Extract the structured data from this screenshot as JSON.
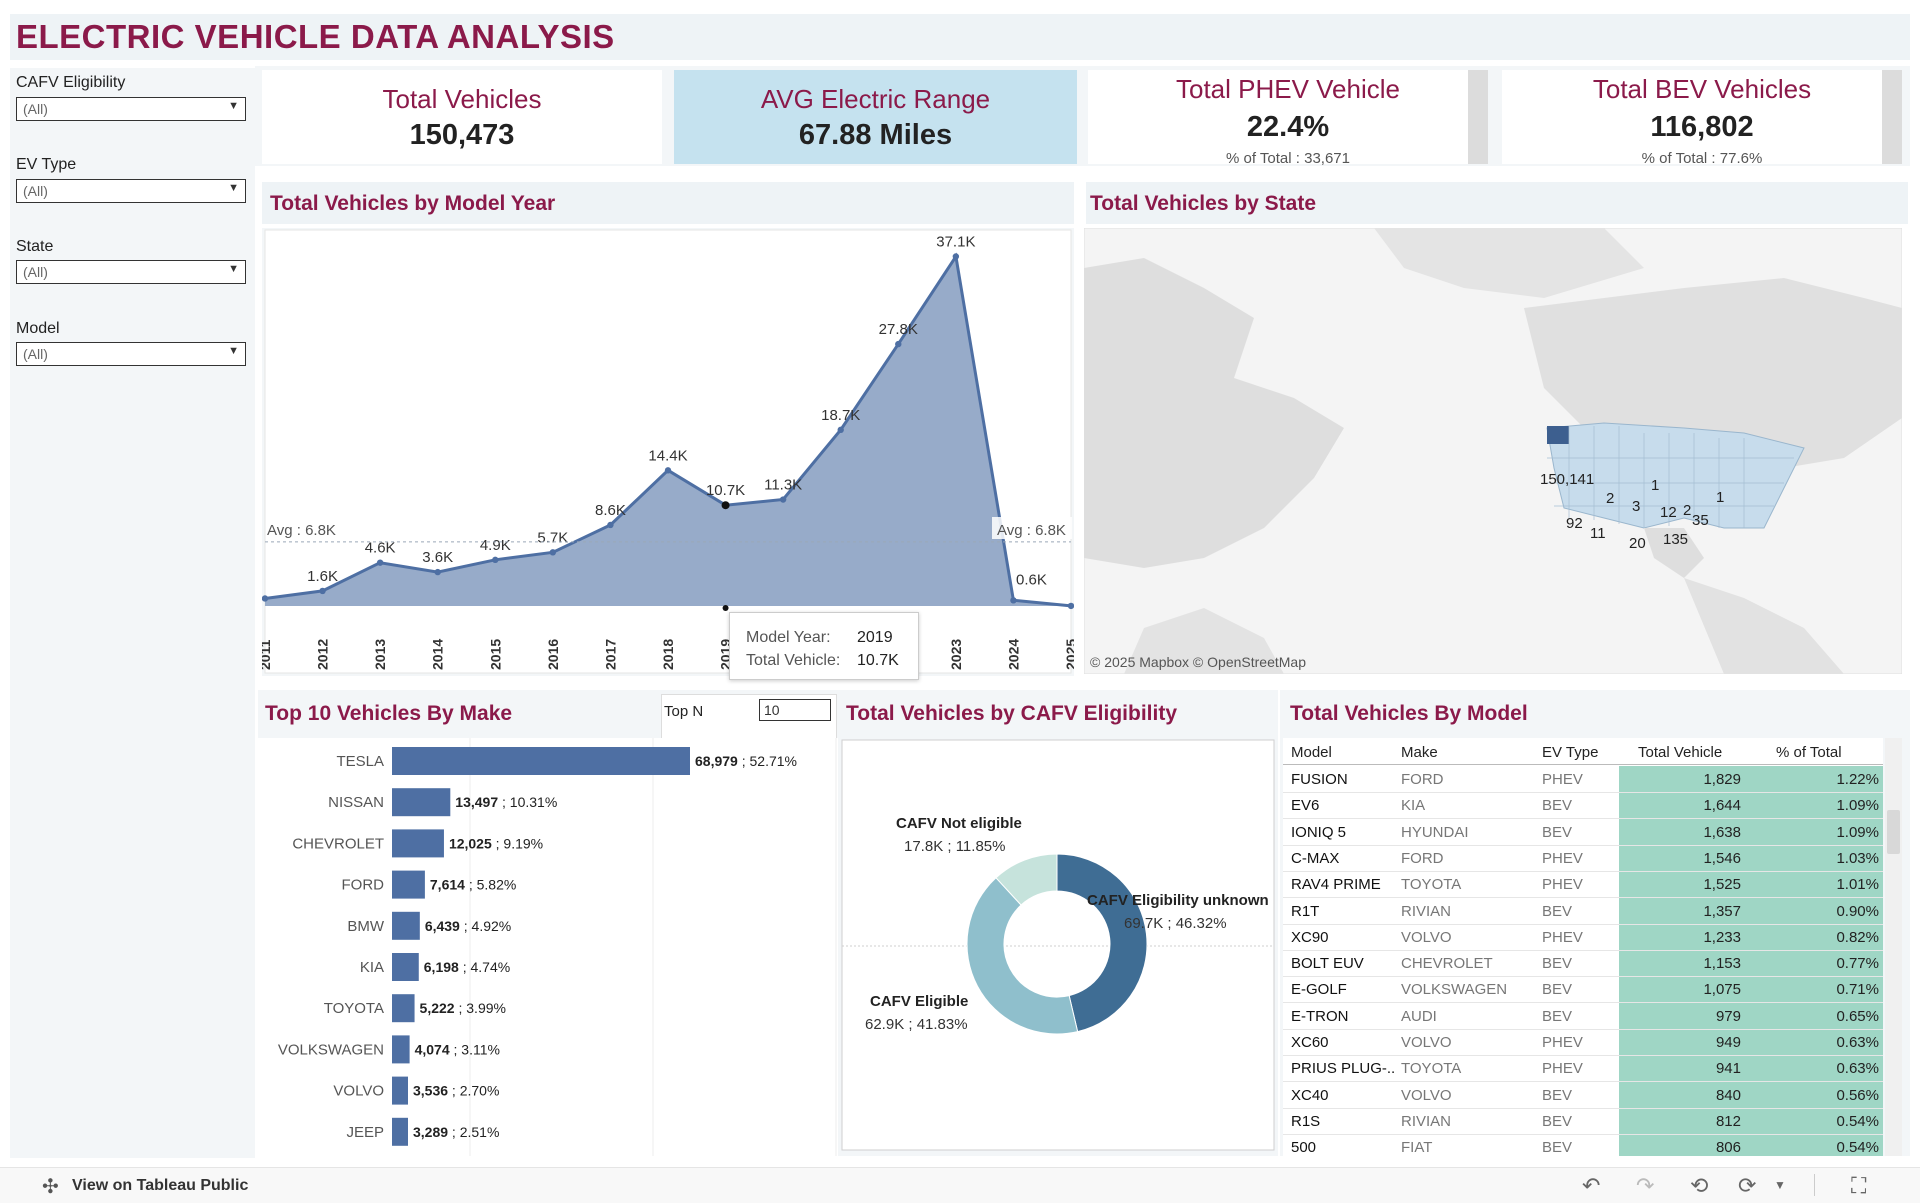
{
  "header": {
    "title": "ELECTRIC VEHICLE DATA ANALYSIS"
  },
  "filters": [
    {
      "label": "CAFV  Eligibility",
      "value": "(All)"
    },
    {
      "label": "EV Type",
      "value": "(All)"
    },
    {
      "label": "State",
      "value": "(All)"
    },
    {
      "label": "Model",
      "value": "(All)"
    }
  ],
  "kpis": {
    "total_vehicles": {
      "title": "Total Vehicles",
      "value": "150,473"
    },
    "avg_range": {
      "title": "AVG Electric Range",
      "value": "67.88 Miles"
    },
    "phev": {
      "title": "Total PHEV Vehicle",
      "value": "22.4%",
      "sub": "% of Total : 33,671"
    },
    "bev": {
      "title": "Total BEV Vehicles",
      "value": "116,802",
      "sub": "% of Total : 77.6%"
    }
  },
  "year_chart": {
    "title": "Total Vehicles by Model Year",
    "avg_label_left": "Avg : 6.8K",
    "avg_label_right": "Avg : 6.8K",
    "tooltip": {
      "k1": "Model Year:",
      "v1": "2019",
      "k2": "Total Vehicle:",
      "v2": "10.7K"
    }
  },
  "state_map": {
    "title": "Total Vehicles by State",
    "labels": [
      "150,141",
      "2",
      "1",
      "1",
      "3",
      "12",
      "2",
      "35",
      "92",
      "11",
      "20",
      "135"
    ],
    "attribution": "© 2025 Mapbox  © OpenStreetMap"
  },
  "make_chart": {
    "title": "Top 10 Vehicles By Make",
    "topn_label": "Top N",
    "topn_value": "10"
  },
  "cafv_chart": {
    "title": "Total Vehicles by CAFV Eligibility",
    "labels": [
      {
        "name": "CAFV Not eligible",
        "value": "17.8K ; 11.85%"
      },
      {
        "name": "CAFV Eligibility unknown",
        "value": "69.7K ; 46.32%"
      },
      {
        "name": "CAFV Eligible",
        "value": "62.9K ; 41.83%"
      }
    ]
  },
  "model_table": {
    "title": "Total Vehicles By Model",
    "columns": [
      "Model",
      "Make",
      "EV Type",
      "Total Vehicle",
      "% of Total"
    ],
    "rows": [
      [
        "FUSION",
        "FORD",
        "PHEV",
        "1,829",
        "1.22%"
      ],
      [
        "EV6",
        "KIA",
        "BEV",
        "1,644",
        "1.09%"
      ],
      [
        "IONIQ 5",
        "HYUNDAI",
        "BEV",
        "1,638",
        "1.09%"
      ],
      [
        "C-MAX",
        "FORD",
        "PHEV",
        "1,546",
        "1.03%"
      ],
      [
        "RAV4 PRIME",
        "TOYOTA",
        "PHEV",
        "1,525",
        "1.01%"
      ],
      [
        "R1T",
        "RIVIAN",
        "BEV",
        "1,357",
        "0.90%"
      ],
      [
        "XC90",
        "VOLVO",
        "PHEV",
        "1,233",
        "0.82%"
      ],
      [
        "BOLT EUV",
        "CHEVROLET",
        "BEV",
        "1,153",
        "0.77%"
      ],
      [
        "E-GOLF",
        "VOLKSWAGEN",
        "BEV",
        "1,075",
        "0.71%"
      ],
      [
        "E-TRON",
        "AUDI",
        "BEV",
        "979",
        "0.65%"
      ],
      [
        "XC60",
        "VOLVO",
        "PHEV",
        "949",
        "0.63%"
      ],
      [
        "PRIUS PLUG-..",
        "TOYOTA",
        "PHEV",
        "941",
        "0.63%"
      ],
      [
        "XC40",
        "VOLVO",
        "BEV",
        "840",
        "0.56%"
      ],
      [
        "R1S",
        "RIVIAN",
        "BEV",
        "812",
        "0.54%"
      ],
      [
        "500",
        "FIAT",
        "BEV",
        "806",
        "0.54%"
      ]
    ]
  },
  "footer": {
    "view_label": "View on Tableau Public"
  },
  "colors": {
    "accent": "#8b1a4a",
    "bar": "#4e6fa3",
    "area": "#97abc9",
    "highlight": "#c5e2ef",
    "table_green": "#9fd6c5"
  },
  "chart_data": [
    {
      "type": "area",
      "title": "Total Vehicles by Model Year",
      "x": [
        "2011",
        "2012",
        "2013",
        "2014",
        "2015",
        "2016",
        "2017",
        "2018",
        "2019",
        "2020",
        "2021",
        "2022",
        "2023",
        "2024",
        "2025"
      ],
      "values": [
        0.8,
        1.6,
        4.6,
        3.6,
        4.9,
        5.7,
        8.6,
        14.4,
        10.7,
        11.3,
        18.7,
        27.8,
        37.1,
        0.6,
        0.01
      ],
      "point_labels": [
        "",
        "1.6K",
        "4.6K",
        "3.6K",
        "4.9K",
        "5.7K",
        "8.6K",
        "14.4K",
        "10.7K",
        "11.3K",
        "18.7K",
        "27.8K",
        "37.1K",
        "0.6K",
        ""
      ],
      "tick_labels": [
        "2011",
        "2012",
        "2013",
        "2014",
        "2015",
        "2016",
        "2017",
        "2018",
        "2019",
        "",
        "",
        "",
        "2023",
        "2024",
        "2025"
      ],
      "unit": "K",
      "reference_line": 6.8,
      "ylim": [
        0,
        38
      ]
    },
    {
      "type": "bar",
      "title": "Top 10 Vehicles By Make",
      "categories": [
        "TESLA",
        "NISSAN",
        "CHEVROLET",
        "FORD",
        "BMW",
        "KIA",
        "TOYOTA",
        "VOLKSWAGEN",
        "VOLVO",
        "JEEP"
      ],
      "values": [
        68979,
        13497,
        12025,
        7614,
        6439,
        6198,
        5222,
        4074,
        3536,
        3289
      ],
      "value_labels": [
        "68,979",
        "13,497",
        "12,025",
        "7,614",
        "6,439",
        "6,198",
        "5,222",
        "4,074",
        "3,536",
        "3,289"
      ],
      "pct_labels": [
        "52.71%",
        "10.31%",
        "9.19%",
        "5.82%",
        "4.92%",
        "4.74%",
        "3.99%",
        "3.11%",
        "2.70%",
        "2.51%"
      ]
    },
    {
      "type": "pie",
      "title": "Total Vehicles by CAFV Eligibility",
      "categories": [
        "CAFV Eligibility unknown",
        "CAFV Eligible",
        "CAFV Not eligible"
      ],
      "values": [
        46.32,
        41.83,
        11.85
      ],
      "colors": [
        "#3f6d94",
        "#8fbfcc",
        "#c6e3dc"
      ]
    }
  ]
}
